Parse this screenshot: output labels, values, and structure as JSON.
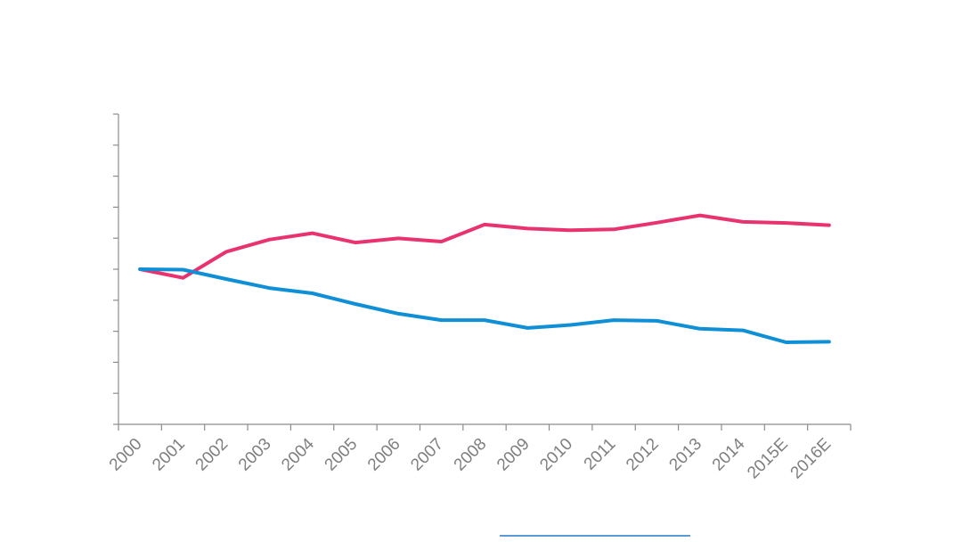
{
  "chart_data": {
    "type": "line",
    "categories": [
      "2000",
      "2001",
      "2002",
      "2003",
      "2004",
      "2005",
      "2006",
      "2007",
      "2008",
      "2009",
      "2010",
      "2011",
      "2012",
      "2013",
      "2014",
      "2015E",
      "2016E"
    ],
    "series": [
      {
        "color": "#e8336f",
        "values": [
          100.0,
          94.4,
          111.2,
          119.1,
          123.2,
          117.2,
          119.9,
          117.8,
          128.8,
          126.2,
          125.1,
          125.7,
          130.0,
          134.7,
          130.5,
          129.8,
          128.4
        ]
      },
      {
        "color": "#0f8fd6",
        "values": [
          100.0,
          99.7,
          93.7,
          87.9,
          84.5,
          77.6,
          71.3,
          67.2,
          67.2,
          62.1,
          64.1,
          67.2,
          66.7,
          61.6,
          60.6,
          52.9,
          53.2
        ]
      }
    ],
    "ylim": [
      0,
      200
    ],
    "y_tick_count": 10,
    "grid": false,
    "legend": {
      "position": "bottom",
      "swatch_color": "#5b9bd5"
    }
  }
}
